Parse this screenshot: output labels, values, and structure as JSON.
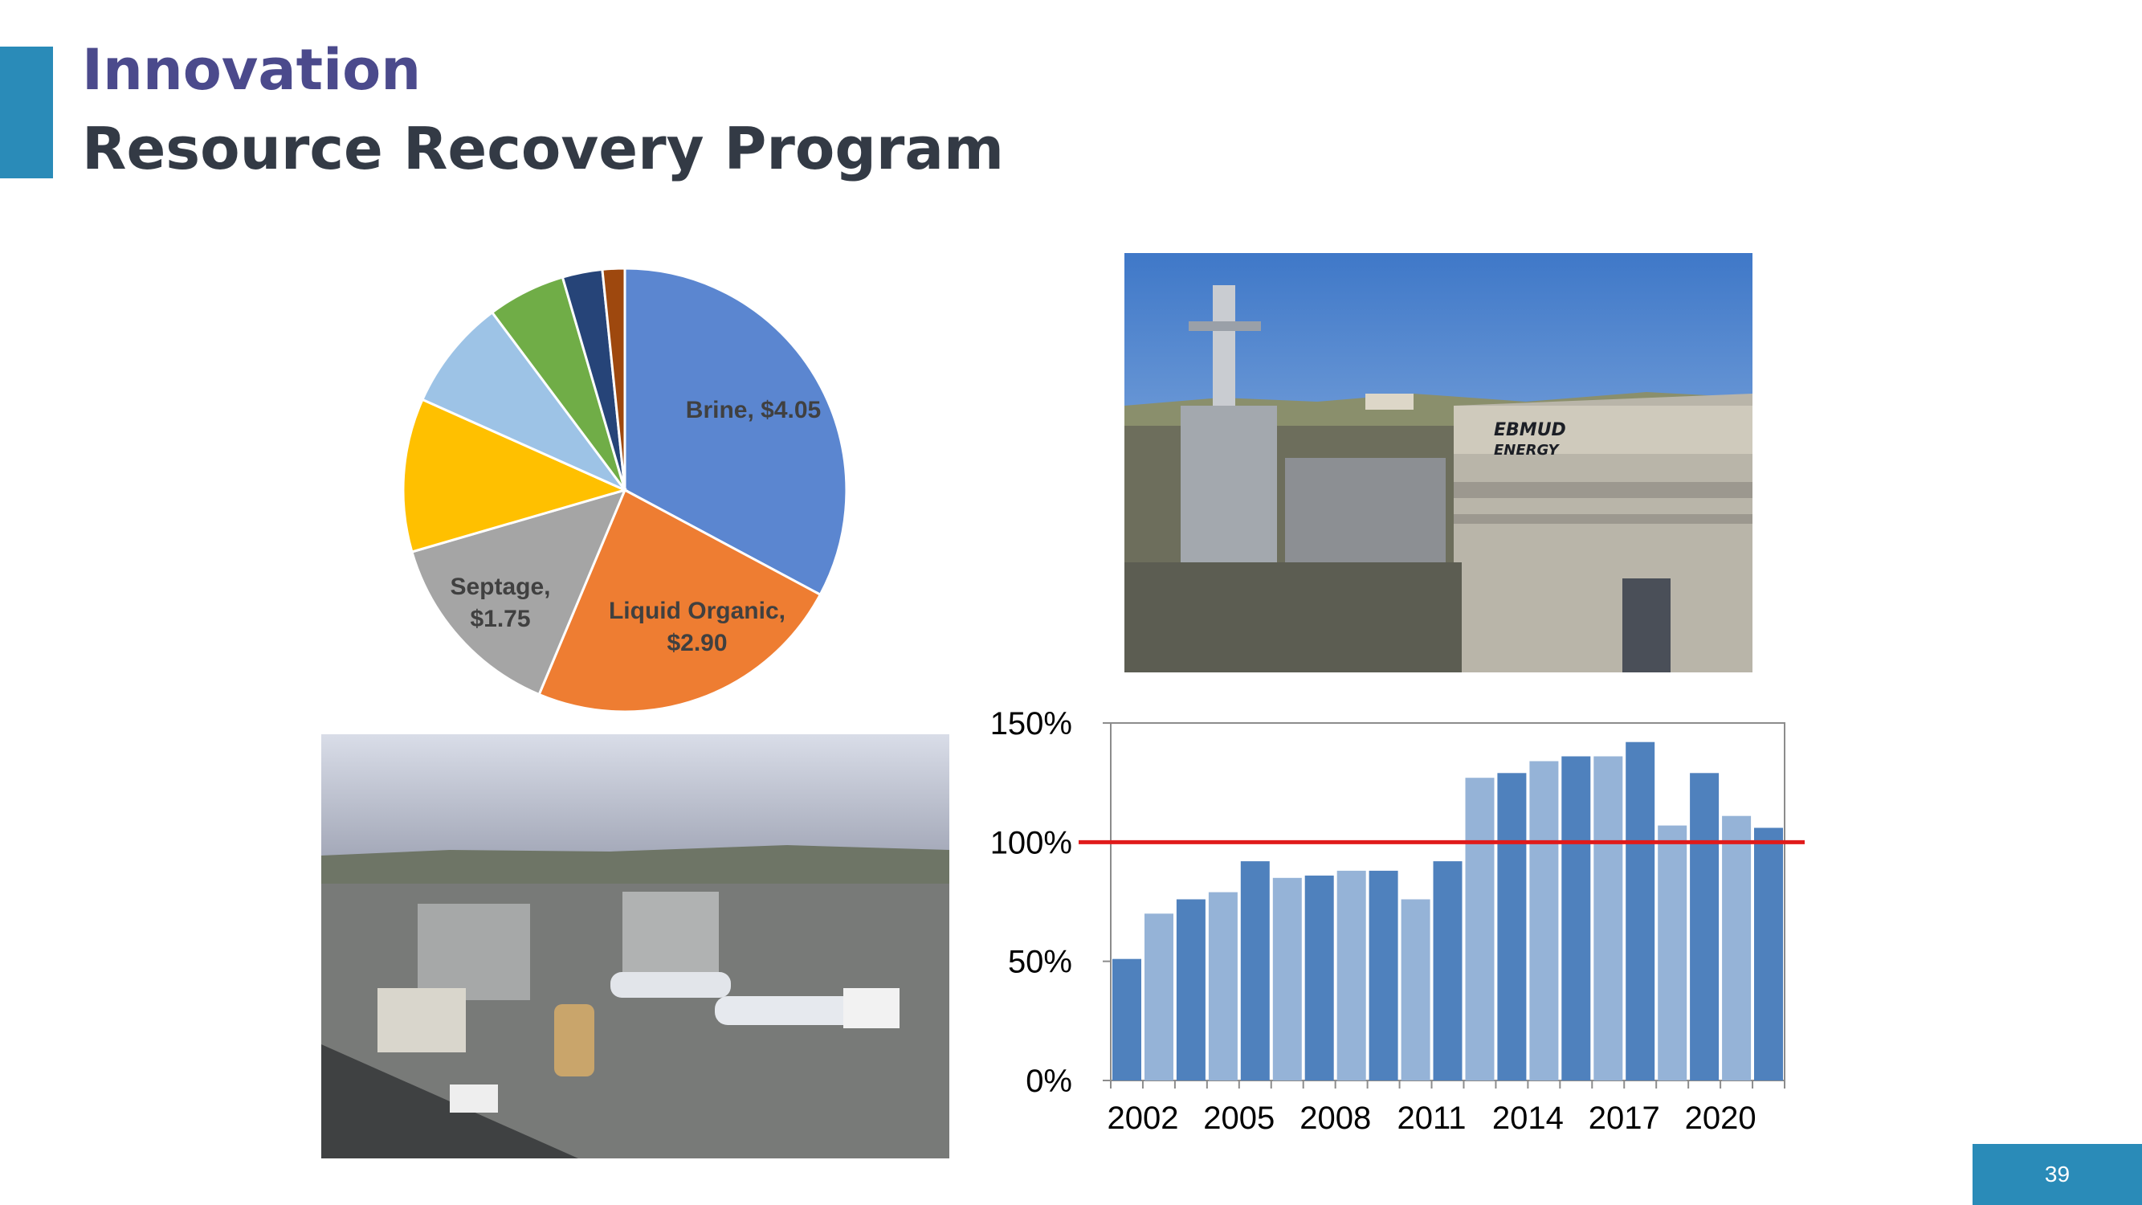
{
  "slide": {
    "title_line1": "Innovation",
    "title_line2": "Resource Recovery Program",
    "page_number": "39"
  },
  "photos": {
    "plant": {
      "sign_line1": "EBMUD",
      "sign_line2": "ENERGY"
    }
  },
  "colors": {
    "accent": "#2a8bb8",
    "title_purple": "#4b4a8c",
    "title_dark": "#333a45",
    "target_line": "#e01b1b",
    "bar_dark": "#4f81bd",
    "bar_light": "#95b3d7"
  },
  "chart_data": [
    {
      "type": "pie",
      "labels": [
        "Brine, $4.05",
        "Liquid Organic, $2.90",
        "Septage, $1.75",
        "",
        "",
        "",
        "",
        ""
      ],
      "values": [
        4.05,
        2.9,
        1.75,
        1.38,
        1.0,
        0.7,
        0.36,
        0.2
      ],
      "colors": [
        "#5b86d0",
        "#ee7d32",
        "#a5a5a5",
        "#ffc000",
        "#9dc3e6",
        "#70ad47",
        "#264478",
        "#9e480e"
      ]
    },
    {
      "type": "bar",
      "categories": [
        "2002",
        "2003",
        "2004",
        "2005",
        "2006",
        "2007",
        "2008",
        "2009",
        "2010",
        "2011",
        "2012",
        "2013",
        "2014",
        "2015",
        "2016",
        "2017",
        "2018",
        "2019",
        "2020",
        "2021",
        "2022"
      ],
      "x_tick_labels": [
        "2002",
        "2005",
        "2008",
        "2011",
        "2014",
        "2017",
        "2020"
      ],
      "values": [
        51,
        70,
        76,
        79,
        92,
        85,
        86,
        88,
        88,
        76,
        92,
        127,
        129,
        134,
        136,
        136,
        142,
        107,
        129,
        111,
        106
      ],
      "ylim": [
        0,
        150
      ],
      "y_tick_labels": [
        "0%",
        "50%",
        "100%",
        "150%"
      ],
      "y_ticks": [
        0,
        50,
        100,
        150
      ],
      "reference_line": 100,
      "grid": false
    }
  ]
}
